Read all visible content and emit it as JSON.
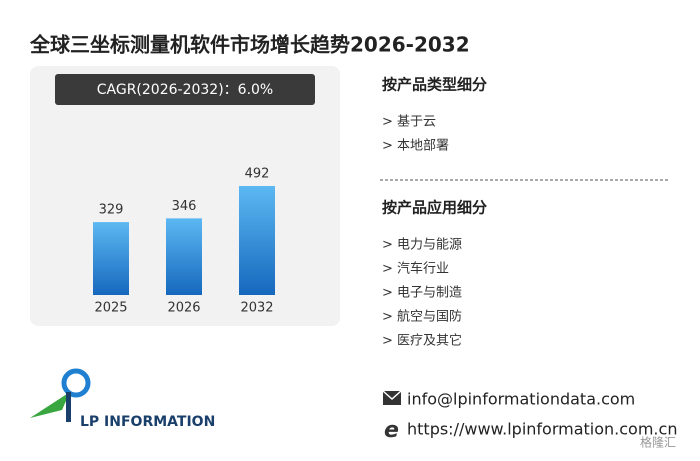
{
  "title": "全球三坐标测量机软件市场增长趋势2026-2032",
  "cagr": "CAGR(2026-2032)：6.0%",
  "chart_data": {
    "type": "bar",
    "categories": [
      "2025",
      "2026",
      "2032"
    ],
    "values": [
      329,
      346,
      492
    ],
    "color": "url(#barGrad)"
  },
  "segments": [
    {
      "heading": "按产品类型细分",
      "items": [
        "> 基于云",
        "> 本地部署"
      ]
    },
    {
      "heading": "按产品应用细分",
      "items": [
        "> 电力与能源",
        "> 汽车行业",
        "> 电子与制造",
        "> 航空与国防",
        "> 医疗及其它"
      ]
    }
  ],
  "contact": {
    "email": "info@lpinformationdata.com",
    "website": "https://www.lpinformation.com.cn"
  },
  "logo": "LP INFORMATION",
  "watermark": "格隆汇"
}
